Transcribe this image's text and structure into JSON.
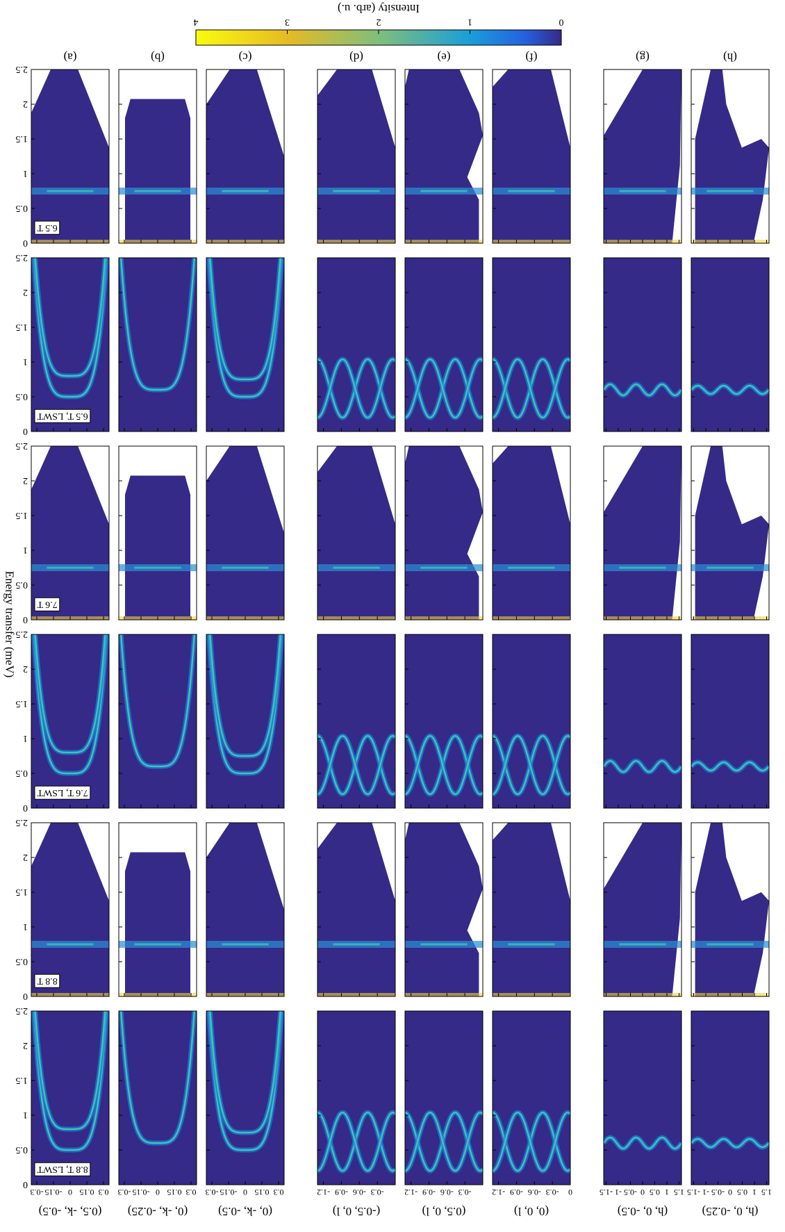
{
  "colorbar": {
    "label": "Intensity (arb. u.)",
    "lim": [
      0,
      4
    ],
    "ticks": [
      0,
      1,
      2,
      3,
      4
    ]
  },
  "y_axis": {
    "label": "Energy transfer (meV)",
    "lim": [
      0,
      2.5
    ],
    "ticks": [
      0,
      0.5,
      1,
      1.5,
      2,
      2.5
    ]
  },
  "rows": [
    {
      "label": "6.5 T"
    },
    {
      "label": "6.5 T, LSWT"
    },
    {
      "label": "7.6 T"
    },
    {
      "label": "7.6 T, LSWT"
    },
    {
      "label": "8.8 T"
    },
    {
      "label": "8.8 T, LSWT"
    }
  ],
  "columns": [
    {
      "label": "(a)",
      "xlabel": "(0.5, -k, -0.5)",
      "xlim": [
        -0.35,
        0.35
      ],
      "xticks": [
        -0.3,
        -0.15,
        0,
        0.15,
        0.3
      ]
    },
    {
      "label": "(b)",
      "xlabel": "(0, -k, -0.25)",
      "xlim": [
        -0.35,
        0.35
      ],
      "xticks": [
        -0.3,
        -0.15,
        0,
        0.15,
        0.3
      ]
    },
    {
      "label": "(c)",
      "xlabel": "(0, -k, -0.5)",
      "xlim": [
        -0.35,
        0.35
      ],
      "xticks": [
        -0.3,
        -0.15,
        0,
        0.15,
        0.3
      ]
    },
    {
      "label": "(d)",
      "xlabel": "(-0.5, 0, l)",
      "xlim": [
        -1.3,
        0
      ],
      "xticks": [
        -1.2,
        -0.9,
        -0.6,
        -0.3
      ]
    },
    {
      "label": "(e)",
      "xlabel": "(0.5, 0, l)",
      "xlim": [
        -1.3,
        0
      ],
      "xticks": [
        -1.2,
        -0.9,
        -0.6,
        -0.3
      ]
    },
    {
      "label": "(f)",
      "xlabel": "(0, 0, l)",
      "xlim": [
        -1.3,
        0
      ],
      "xticks": [
        -1.2,
        -0.9,
        -0.6,
        -0.3,
        0
      ]
    },
    {
      "label": "(g)",
      "xlabel": "(h, 0, -0.5)",
      "xlim": [
        -1.6,
        1.6
      ],
      "xticks": [
        -1.5,
        -1,
        -0.5,
        0,
        0.5,
        1,
        1.5
      ]
    },
    {
      "label": "(h)",
      "xlabel": "(h, 0, -0.25)",
      "xlim": [
        -1.6,
        1.6
      ],
      "xticks": [
        -1.5,
        -1,
        -0.5,
        0,
        0.5,
        1,
        1.5
      ]
    }
  ]
}
